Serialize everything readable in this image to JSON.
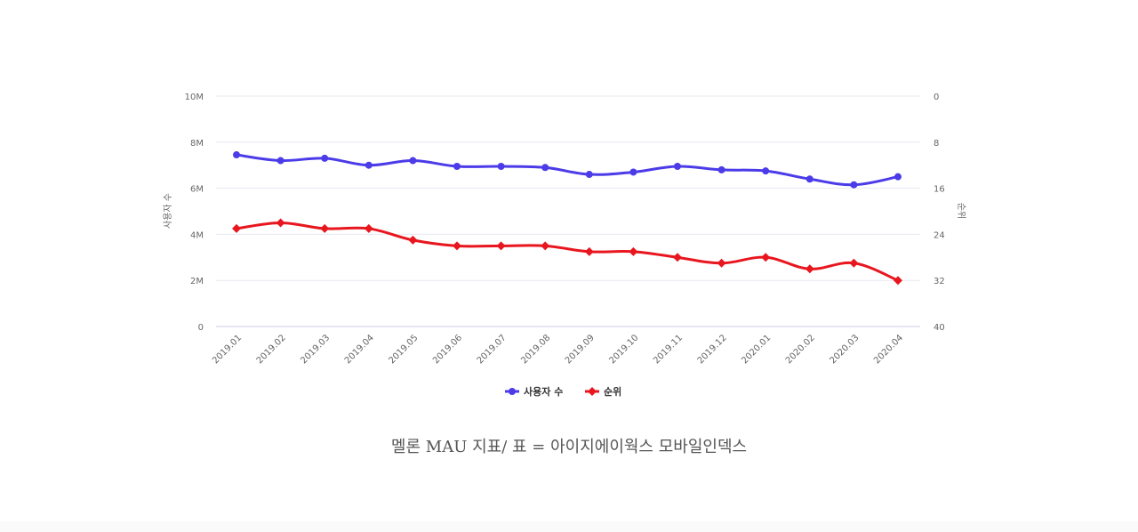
{
  "chart_data": {
    "type": "line",
    "title": "",
    "categories": [
      "2019.01",
      "2019.02",
      "2019.03",
      "2019.04",
      "2019.05",
      "2019.06",
      "2019.07",
      "2019.08",
      "2019.09",
      "2019.10",
      "2019.11",
      "2019.12",
      "2020.01",
      "2020.02",
      "2020.03",
      "2020.04"
    ],
    "y_left": {
      "label": "사용자 수",
      "ticks": [
        "0",
        "2M",
        "4M",
        "6M",
        "8M",
        "10M"
      ],
      "range": [
        0,
        10000000
      ]
    },
    "y_right": {
      "label": "순위",
      "ticks": [
        "0",
        "8",
        "16",
        "24",
        "32",
        "40"
      ],
      "range": [
        0,
        40
      ],
      "reversed": true
    },
    "grid": true,
    "legend_position": "bottom",
    "series": [
      {
        "name": "사용자 수",
        "axis": "left",
        "color": "#4b3be8",
        "marker": "circle",
        "values": [
          7450000,
          7200000,
          7300000,
          7000000,
          7200000,
          6950000,
          6950000,
          6900000,
          6600000,
          6700000,
          6950000,
          6800000,
          6750000,
          6400000,
          6150000,
          6500000
        ]
      },
      {
        "name": "순위",
        "axis": "right",
        "color": "#e8161e",
        "marker": "diamond",
        "values": [
          23,
          22,
          23,
          23,
          25,
          26,
          26,
          26,
          27,
          27,
          28,
          29,
          28,
          30,
          29,
          32
        ]
      }
    ]
  },
  "caption": "멜론 MAU 지표/ 표 = 아이지에이웍스 모바일인덱스"
}
